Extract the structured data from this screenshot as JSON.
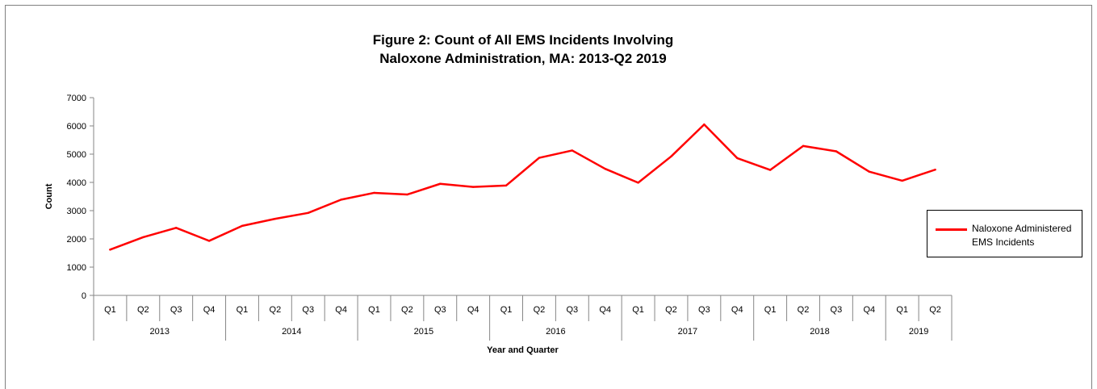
{
  "chart_data": {
    "type": "line",
    "title_lines": [
      "Figure 2: Count of All EMS Incidents Involving",
      "Naloxone Administration, MA: 2013-Q2 2019"
    ],
    "xlabel": "Year and Quarter",
    "ylabel": "Count",
    "ylim": [
      0,
      7000
    ],
    "yticks": [
      0,
      1000,
      2000,
      3000,
      4000,
      5000,
      6000,
      7000
    ],
    "grid": false,
    "legend_position": "right",
    "years": [
      {
        "label": "2013",
        "quarters": [
          "Q1",
          "Q2",
          "Q3",
          "Q4"
        ]
      },
      {
        "label": "2014",
        "quarters": [
          "Q1",
          "Q2",
          "Q3",
          "Q4"
        ]
      },
      {
        "label": "2015",
        "quarters": [
          "Q1",
          "Q2",
          "Q3",
          "Q4"
        ]
      },
      {
        "label": "2016",
        "quarters": [
          "Q1",
          "Q2",
          "Q3",
          "Q4"
        ]
      },
      {
        "label": "2017",
        "quarters": [
          "Q1",
          "Q2",
          "Q3",
          "Q4"
        ]
      },
      {
        "label": "2018",
        "quarters": [
          "Q1",
          "Q2",
          "Q3",
          "Q4"
        ]
      },
      {
        "label": "2019",
        "quarters": [
          "Q1",
          "Q2"
        ]
      }
    ],
    "series": [
      {
        "name": "Naloxone Administered EMS Incidents",
        "color": "#ff0000",
        "values": [
          1620,
          2060,
          2390,
          1930,
          2460,
          2710,
          2920,
          3390,
          3630,
          3570,
          3950,
          3840,
          3890,
          4870,
          5130,
          4480,
          3990,
          4920,
          6050,
          4860,
          4440,
          5290,
          5100,
          4380,
          4060,
          4450
        ]
      }
    ]
  }
}
